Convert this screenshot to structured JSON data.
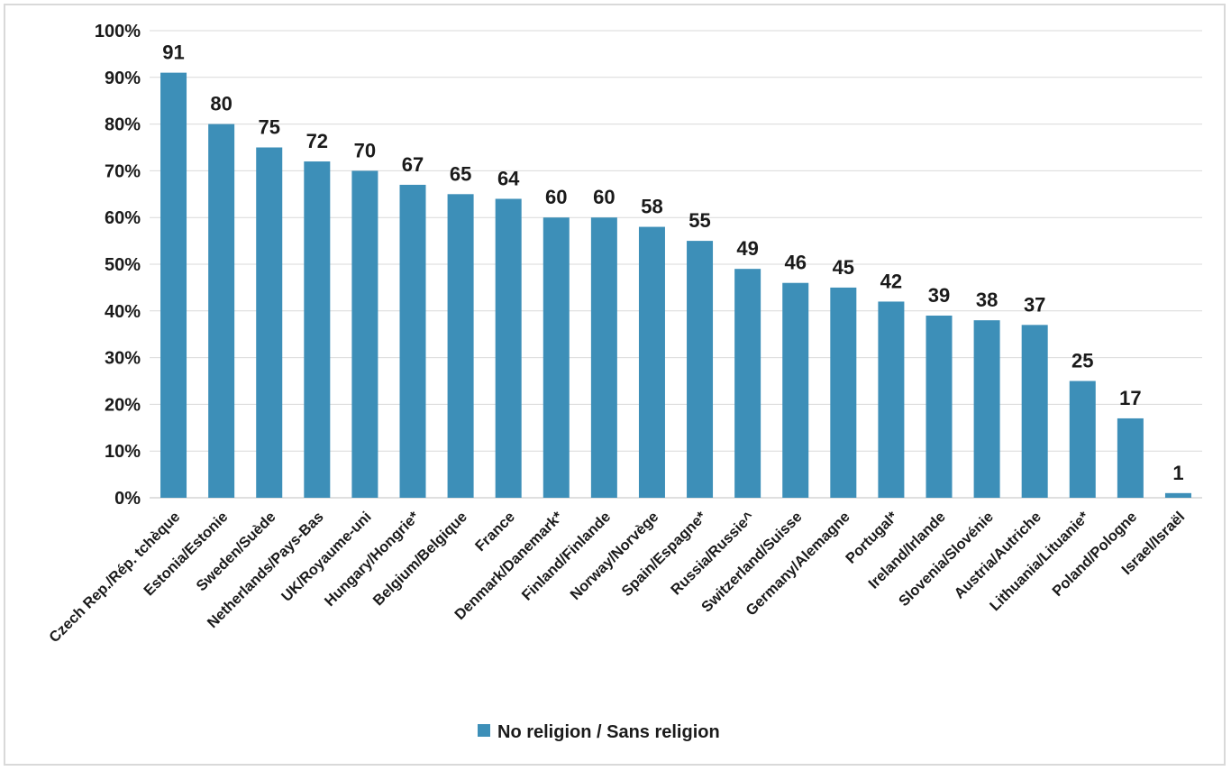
{
  "chart_data": {
    "type": "bar",
    "title": "",
    "xlabel": "",
    "ylabel": "",
    "ylim": [
      0,
      100
    ],
    "yticks": [
      "0%",
      "10%",
      "20%",
      "30%",
      "40%",
      "50%",
      "60%",
      "70%",
      "80%",
      "90%",
      "100%"
    ],
    "grid": true,
    "legend_position": "bottom",
    "categories": [
      "Czech Rep./Rép. tchèque",
      "Estonia/Estonie",
      "Sweden/Suède",
      "Netherlands/Pays-Bas",
      "UK/Royaume-uni",
      "Hungary/Hongrie*",
      "Belgium/Belgique",
      "France",
      "Denmark/Danemark*",
      "Finland/Finlande",
      "Norway/Norvège",
      "Spain/Espagne*",
      "Russia/Russie^",
      "Switzerland/Suisse",
      "Germany/Alemagne",
      "Portugal*",
      "Ireland/Irlande",
      "Slovenia/Slovénie",
      "Austria/Autriche",
      "Lithuania/Lituanie*",
      "Poland/Pologne",
      "Israel/Israël"
    ],
    "series": [
      {
        "name": "No religion / Sans religion",
        "color": "#3d8fb8",
        "values": [
          91,
          80,
          75,
          72,
          70,
          67,
          65,
          64,
          60,
          60,
          58,
          55,
          49,
          46,
          45,
          42,
          39,
          38,
          37,
          25,
          17,
          1
        ]
      }
    ]
  }
}
